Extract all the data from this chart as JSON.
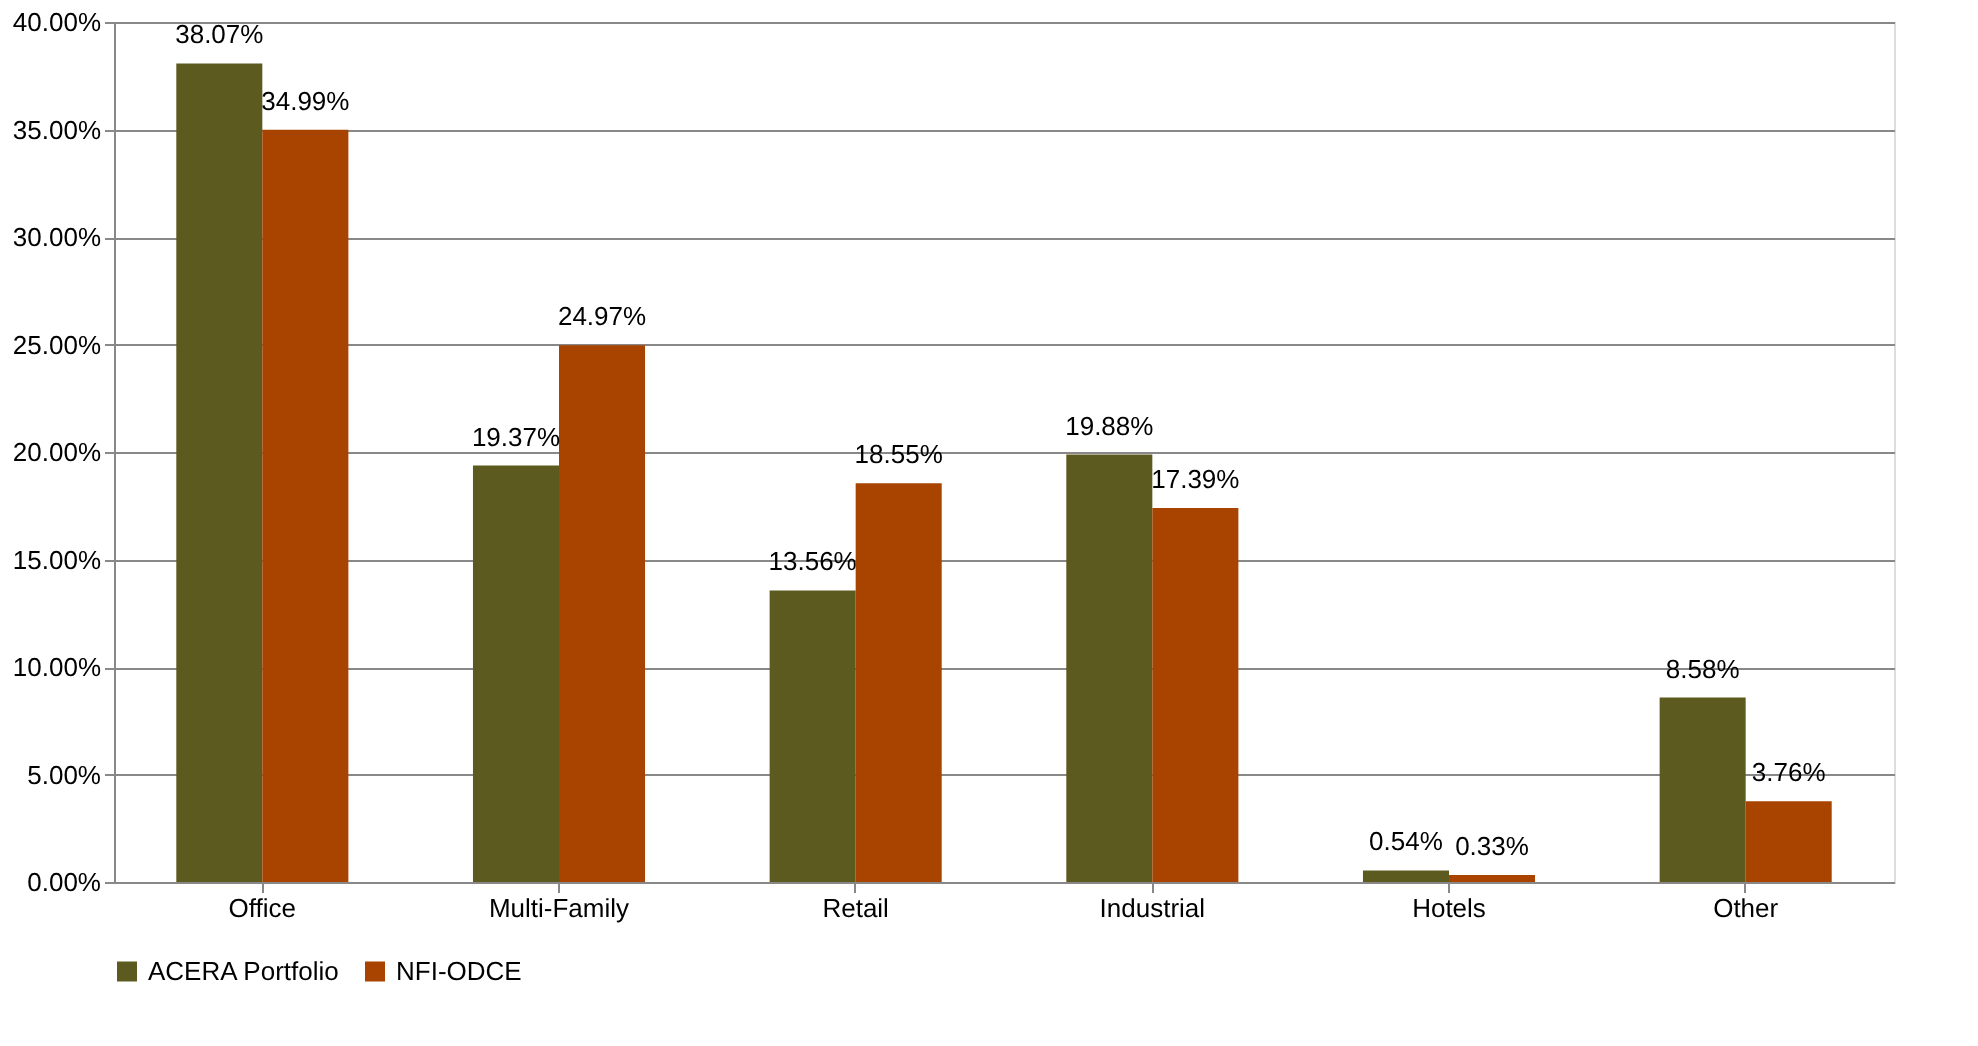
{
  "chart_data": {
    "type": "bar",
    "categories": [
      "Office",
      "Multi-Family",
      "Retail",
      "Industrial",
      "Hotels",
      "Other"
    ],
    "series": [
      {
        "name": "ACERA Portfolio",
        "color": "#5c5a1f",
        "values": [
          38.07,
          19.37,
          13.56,
          19.88,
          0.54,
          8.58
        ],
        "value_labels": [
          "38.07%",
          "19.37%",
          "13.56%",
          "19.88%",
          "0.54%",
          "8.58%"
        ]
      },
      {
        "name": "NFI-ODCE",
        "color": "#a84300",
        "values": [
          34.99,
          24.97,
          18.55,
          17.39,
          0.33,
          3.76
        ],
        "value_labels": [
          "34.99%",
          "24.97%",
          "18.55%",
          "17.39%",
          "0.33%",
          "3.76%"
        ]
      }
    ],
    "ylim": [
      0,
      40
    ],
    "yticks": [
      {
        "value": 0,
        "label": "0.00%"
      },
      {
        "value": 5,
        "label": "5.00%"
      },
      {
        "value": 10,
        "label": "10.00%"
      },
      {
        "value": 15,
        "label": "15.00%"
      },
      {
        "value": 20,
        "label": "20.00%"
      },
      {
        "value": 25,
        "label": "25.00%"
      },
      {
        "value": 30,
        "label": "30.00%"
      },
      {
        "value": 35,
        "label": "35.00%"
      },
      {
        "value": 40,
        "label": "40.00%"
      }
    ],
    "grid": "y",
    "legend": "bottom"
  }
}
